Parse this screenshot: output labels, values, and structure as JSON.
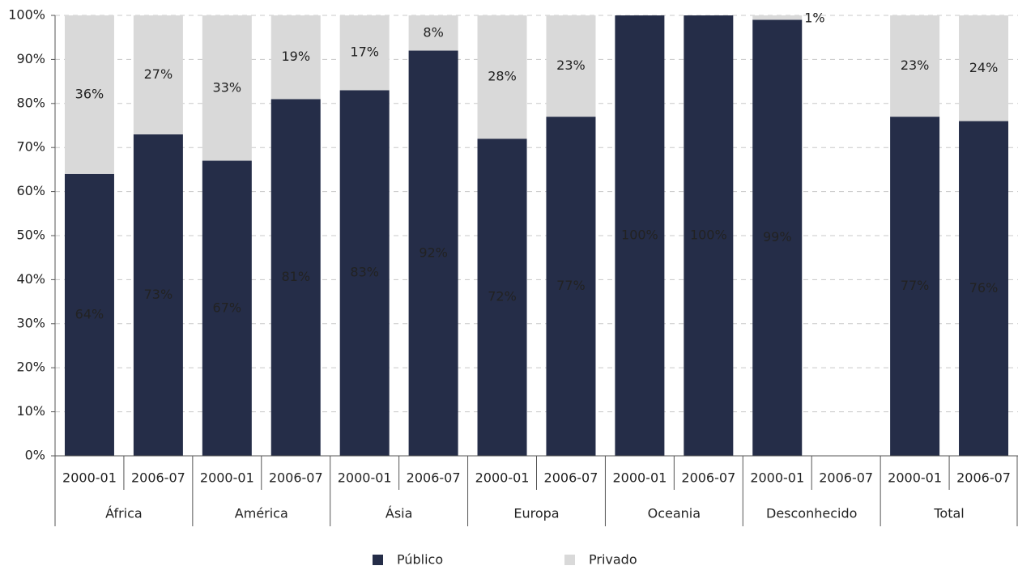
{
  "chart_data": {
    "type": "stacked_bar",
    "categories": [
      "2000-01",
      "2006-07",
      "2000-01",
      "2006-07",
      "2000-01",
      "2006-07",
      "2000-01",
      "2006-07",
      "2000-01",
      "2006-07",
      "2000-01",
      "2006-07",
      "2000-01",
      "2006-07"
    ],
    "groups": [
      "África",
      "América",
      "Ásia",
      "Europa",
      "Oceania",
      "Desconhecido",
      "Total"
    ],
    "series": [
      {
        "name": "Público",
        "color": "#252d48",
        "values": [
          64,
          73,
          67,
          81,
          83,
          92,
          72,
          77,
          100,
          100,
          99,
          null,
          77,
          76
        ],
        "value_labels": [
          "64%",
          "73%",
          "67%",
          "81%",
          "83%",
          "92%",
          "72%",
          "77%",
          "100%",
          "100%",
          "99%",
          null,
          "77%",
          "76%"
        ]
      },
      {
        "name": "Privado",
        "color": "#d9d9d9",
        "values": [
          36,
          27,
          33,
          19,
          17,
          8,
          28,
          23,
          0,
          0,
          1,
          null,
          23,
          24
        ],
        "value_labels": [
          "36%",
          "27%",
          "33%",
          "19%",
          "17%",
          "8%",
          "28%",
          "23%",
          null,
          null,
          "1%",
          null,
          "23%",
          "24%"
        ]
      }
    ],
    "ylim": [
      0,
      100
    ],
    "yticks": [
      {
        "value": 0,
        "label": "0%"
      },
      {
        "value": 10,
        "label": "10%"
      },
      {
        "value": 20,
        "label": "20%"
      },
      {
        "value": 30,
        "label": "30%"
      },
      {
        "value": 40,
        "label": "40%"
      },
      {
        "value": 50,
        "label": "50%"
      },
      {
        "value": 60,
        "label": "60%"
      },
      {
        "value": 70,
        "label": "70%"
      },
      {
        "value": 80,
        "label": "80%"
      },
      {
        "value": 90,
        "label": "90%"
      },
      {
        "value": 100,
        "label": "100%"
      }
    ],
    "grid": true,
    "legend": "bottom"
  }
}
